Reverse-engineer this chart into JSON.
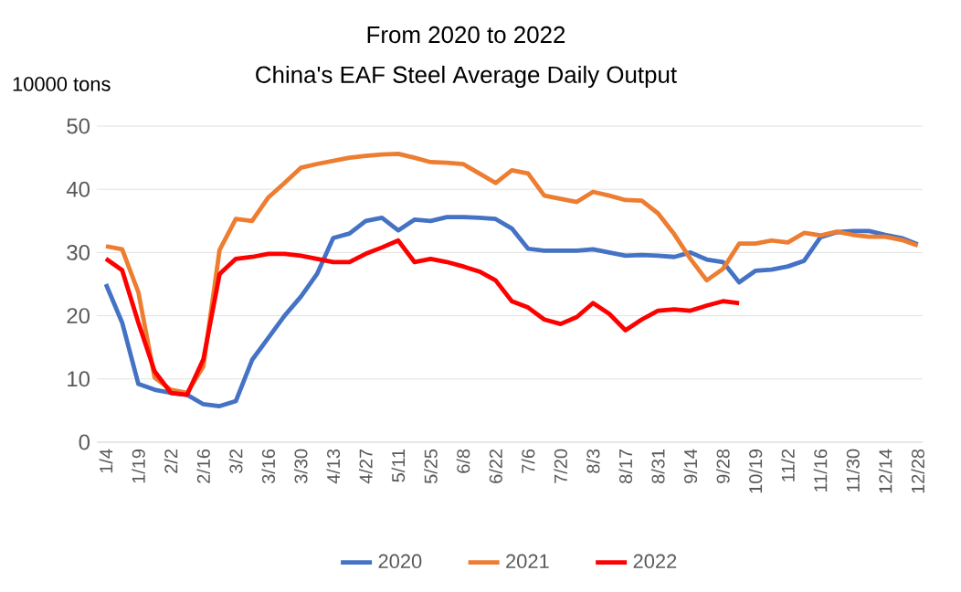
{
  "chart_data": {
    "type": "line",
    "title": "From 2020 to 2022",
    "subtitle": "China's EAF Steel Average Daily Output",
    "ylabel": "10000 tons",
    "categories": [
      "1/4",
      null,
      "1/19",
      null,
      "2/2",
      null,
      "2/16",
      null,
      "3/2",
      null,
      "3/16",
      null,
      "3/30",
      null,
      "4/13",
      null,
      "4/27",
      null,
      "5/11",
      null,
      "5/25",
      null,
      "6/8",
      null,
      "6/22",
      null,
      "7/6",
      null,
      "7/20",
      null,
      "8/3",
      null,
      "8/17",
      null,
      "8/31",
      null,
      "9/14",
      null,
      "9/28",
      null,
      "10/19",
      null,
      "11/2",
      null,
      "11/16",
      null,
      "11/30",
      null,
      "12/14",
      null,
      "12/28"
    ],
    "series": [
      {
        "name": "2020",
        "color": "#4472c4",
        "values": [
          25,
          18.9,
          9.2,
          8.3,
          7.8,
          7.5,
          6.0,
          5.7,
          6.5,
          13,
          16.5,
          20,
          23,
          26.6,
          32.3,
          33,
          35,
          35.5,
          33.5,
          35.2,
          35,
          35.6,
          35.6,
          35.5,
          35.3,
          33.8,
          30.6,
          30.3,
          30.3,
          30.3,
          30.5,
          30.0,
          29.5,
          29.6,
          29.5,
          29.3,
          30.0,
          28.9,
          28.5,
          25.3,
          27.1,
          27.3,
          27.8,
          28.7,
          32.4,
          33.2,
          33.4,
          33.4,
          32.8,
          32.3,
          31.3
        ]
      },
      {
        "name": "2021",
        "color": "#ed7d31",
        "values": [
          31,
          30.5,
          23.7,
          10.2,
          8.3,
          7.8,
          12,
          30.4,
          35.3,
          35,
          38.7,
          41,
          43.4,
          44,
          44.5,
          45,
          45.3,
          45.5,
          45.6,
          45,
          44.3,
          44.2,
          44,
          42.5,
          41,
          43,
          42.5,
          39,
          38.5,
          38,
          39.6,
          39,
          38.3,
          38.2,
          36.2,
          32.9,
          29,
          25.6,
          27.4,
          31.4,
          31.4,
          31.9,
          31.6,
          33.1,
          32.7,
          33.3,
          32.8,
          32.5,
          32.5,
          32,
          31.1
        ]
      },
      {
        "name": "2022",
        "color": "#ff0000",
        "values": [
          29,
          27.2,
          18.9,
          11.2,
          7.8,
          7.5,
          13.1,
          26.6,
          29,
          29.3,
          29.8,
          29.8,
          29.5,
          29,
          28.5,
          28.5,
          29.8,
          30.8,
          31.9,
          28.5,
          29,
          28.5,
          27.8,
          27,
          25.6,
          22.3,
          21.3,
          19.4,
          18.7,
          19.8,
          22,
          20.3,
          17.7,
          19.4,
          20.8,
          21,
          20.8,
          21.6,
          22.3,
          22,
          null,
          null,
          null,
          null,
          null,
          null,
          null,
          null,
          null,
          null,
          null
        ]
      }
    ],
    "ylim": [
      0,
      50
    ],
    "yticks": [
      0,
      10,
      20,
      30,
      40,
      50
    ],
    "grid": "y",
    "legend": "bottom"
  }
}
